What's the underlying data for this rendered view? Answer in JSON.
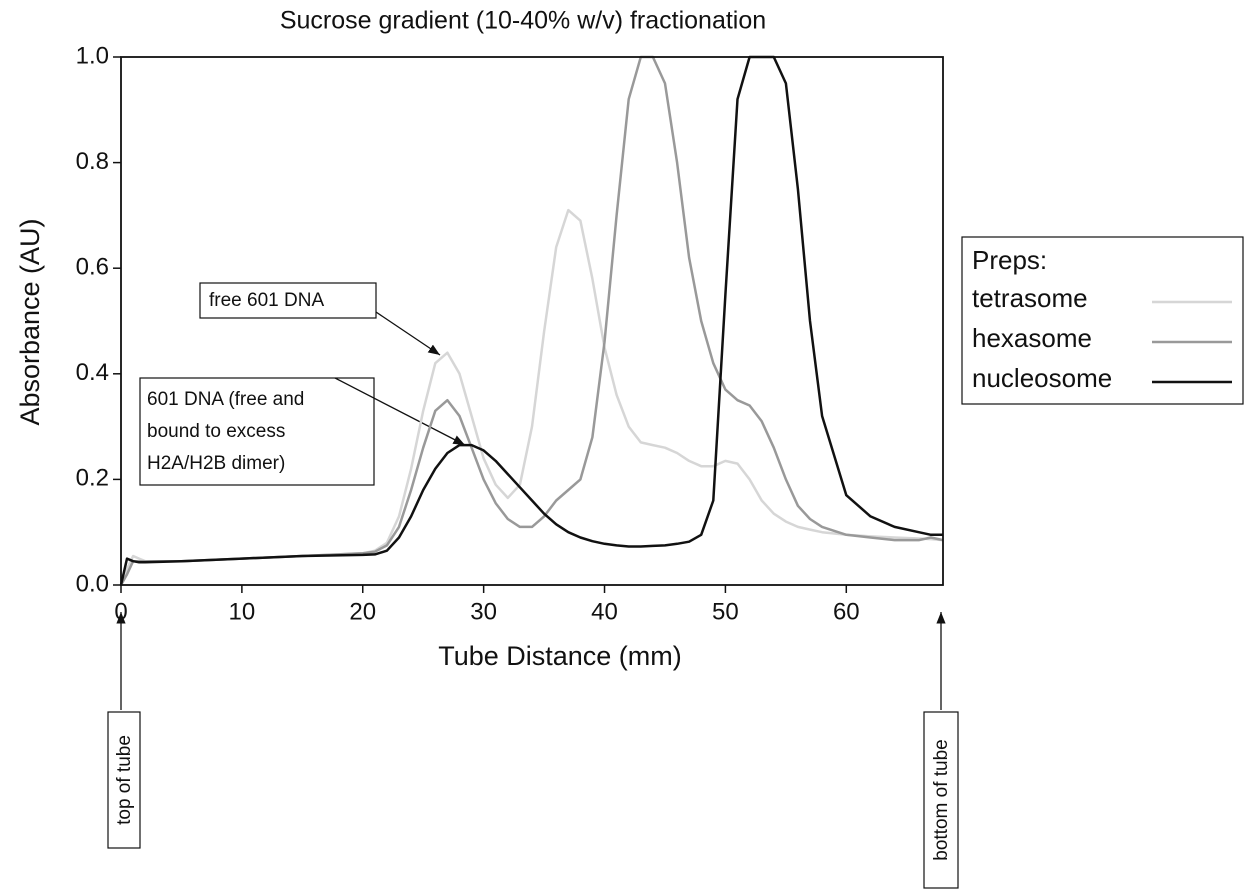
{
  "chart_data": {
    "type": "line",
    "title": "Sucrose gradient (10-40% w/v) fractionation",
    "x_label": "Tube Distance (mm)",
    "y_label": "Absorbance (AU)",
    "x": [
      0,
      0.5,
      1,
      1.5,
      2,
      5,
      10,
      15,
      20,
      21,
      22,
      23,
      24,
      25,
      26,
      27,
      28,
      29,
      30,
      31,
      32,
      33,
      34,
      35,
      36,
      37,
      38,
      39,
      40,
      41,
      42,
      43,
      44,
      45,
      46,
      47,
      48,
      49,
      50,
      51,
      52,
      53,
      54,
      55,
      56,
      57,
      58,
      60,
      62,
      64,
      66,
      67,
      68
    ],
    "series": [
      {
        "name": "tetrasome",
        "color": "#d6d6d6",
        "values": [
          0,
          0.03,
          0.055,
          0.05,
          0.045,
          0.045,
          0.05,
          0.055,
          0.06,
          0.065,
          0.08,
          0.13,
          0.22,
          0.33,
          0.42,
          0.44,
          0.4,
          0.32,
          0.24,
          0.19,
          0.165,
          0.19,
          0.3,
          0.48,
          0.64,
          0.71,
          0.69,
          0.58,
          0.45,
          0.36,
          0.3,
          0.27,
          0.265,
          0.26,
          0.25,
          0.235,
          0.225,
          0.225,
          0.235,
          0.23,
          0.2,
          0.16,
          0.135,
          0.12,
          0.11,
          0.105,
          0.1,
          0.095,
          0.092,
          0.09,
          0.088,
          0.087,
          0.085
        ]
      },
      {
        "name": "hexasome",
        "color": "#999999",
        "values": [
          0,
          0.02,
          0.045,
          0.045,
          0.045,
          0.045,
          0.05,
          0.055,
          0.06,
          0.063,
          0.075,
          0.11,
          0.18,
          0.26,
          0.33,
          0.35,
          0.32,
          0.26,
          0.2,
          0.155,
          0.125,
          0.11,
          0.11,
          0.13,
          0.16,
          0.18,
          0.2,
          0.28,
          0.46,
          0.7,
          0.92,
          1.0,
          1.0,
          0.95,
          0.8,
          0.62,
          0.5,
          0.42,
          0.37,
          0.35,
          0.34,
          0.31,
          0.26,
          0.2,
          0.15,
          0.125,
          0.11,
          0.095,
          0.09,
          0.085,
          0.085,
          0.09,
          0.085
        ]
      },
      {
        "name": "nucleosome",
        "color": "#111111",
        "values": [
          0,
          0.05,
          0.045,
          0.043,
          0.043,
          0.045,
          0.05,
          0.055,
          0.057,
          0.058,
          0.065,
          0.09,
          0.13,
          0.18,
          0.22,
          0.25,
          0.265,
          0.265,
          0.255,
          0.235,
          0.21,
          0.185,
          0.16,
          0.135,
          0.115,
          0.1,
          0.09,
          0.083,
          0.078,
          0.075,
          0.073,
          0.073,
          0.074,
          0.075,
          0.078,
          0.082,
          0.095,
          0.16,
          0.55,
          0.92,
          1.0,
          1.0,
          1.0,
          0.95,
          0.75,
          0.5,
          0.32,
          0.17,
          0.13,
          0.11,
          0.1,
          0.095,
          0.095
        ]
      }
    ],
    "xlim": [
      0,
      68
    ],
    "xticks": [
      0,
      10,
      20,
      30,
      40,
      50,
      60
    ],
    "ylim": [
      0,
      1
    ],
    "yticks": [
      {
        "value": 0,
        "label": "0.0"
      },
      0.2,
      0.4,
      0.6,
      0.8,
      {
        "value": 1,
        "label": "1.0"
      }
    ],
    "grid": false,
    "legend": {
      "title": "Preps:",
      "position": "right"
    },
    "annotations": {
      "free_dna": "free 601 DNA",
      "bound_dna": [
        "601 DNA (free and",
        "bound to excess",
        "H2A/H2B dimer)"
      ],
      "top": "top of tube",
      "bottom": "bottom of tube"
    }
  }
}
